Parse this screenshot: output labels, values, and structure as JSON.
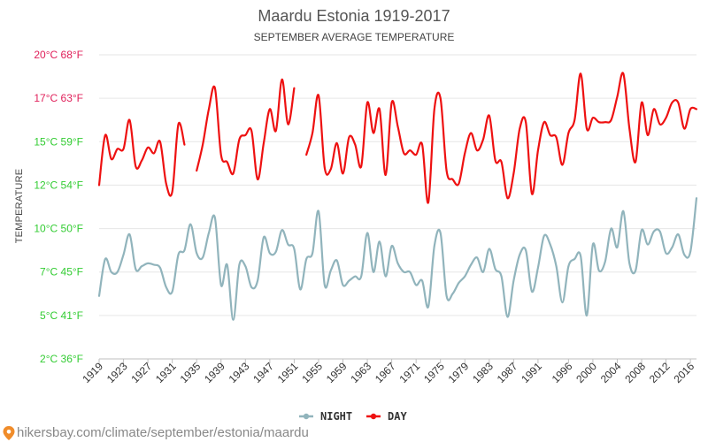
{
  "chart_data": {
    "type": "line",
    "title": "Maardu Estonia 1919-2017",
    "subtitle": "SEPTEMBER AVERAGE TEMPERATURE",
    "ylabel": "TEMPERATURE",
    "xlabel": "",
    "ylim": [
      2,
      20
    ],
    "xlim": [
      1919,
      2017
    ],
    "y_ticks": [
      {
        "value": 2,
        "label": "2°C 36°F",
        "color": "#33cc33"
      },
      {
        "value": 5,
        "label": "5°C 41°F",
        "color": "#33cc33"
      },
      {
        "value": 7,
        "label": "7°C 45°F",
        "color": "#33cc33"
      },
      {
        "value": 10,
        "label": "10°C 50°F",
        "color": "#33cc33"
      },
      {
        "value": 12,
        "label": "12°C 54°F",
        "color": "#33cc33"
      },
      {
        "value": 15,
        "label": "15°C 59°F",
        "color": "#33cc33"
      },
      {
        "value": 17,
        "label": "17°C 63°F",
        "color": "#e0205a"
      },
      {
        "value": 20,
        "label": "20°C 68°F",
        "color": "#e0205a"
      }
    ],
    "x_ticks": [
      {
        "value": 1919,
        "label": "1919"
      },
      {
        "value": 1923,
        "label": "1923"
      },
      {
        "value": 1927,
        "label": "1927"
      },
      {
        "value": 1931,
        "label": "1931"
      },
      {
        "value": 1935,
        "label": "1935"
      },
      {
        "value": 1939,
        "label": "1939"
      },
      {
        "value": 1943,
        "label": "1943"
      },
      {
        "value": 1947,
        "label": "1947"
      },
      {
        "value": 1951,
        "label": "1951"
      },
      {
        "value": 1955,
        "label": "1955"
      },
      {
        "value": 1959,
        "label": "1959"
      },
      {
        "value": 1963,
        "label": "1963"
      },
      {
        "value": 1967,
        "label": "1967"
      },
      {
        "value": 1971,
        "label": "1971"
      },
      {
        "value": 1975,
        "label": "1975"
      },
      {
        "value": 1979,
        "label": "1979"
      },
      {
        "value": 1983,
        "label": "1983"
      },
      {
        "value": 1987,
        "label": "1987"
      },
      {
        "value": 1991,
        "label": "1991"
      },
      {
        "value": 1996,
        "label": "1996"
      },
      {
        "value": 2000,
        "label": "2000"
      },
      {
        "value": 2004,
        "label": "2004"
      },
      {
        "value": 2008,
        "label": "2008"
      },
      {
        "value": 2012,
        "label": "2012"
      },
      {
        "value": 2016,
        "label": "2016"
      }
    ],
    "grid": true,
    "legend_position": "bottom-center",
    "series": [
      {
        "name": "NIGHT",
        "color": "#91b4bc",
        "x": [
          1919,
          1920,
          1921,
          1922,
          1923,
          1924,
          1925,
          1926,
          1927,
          1928,
          1929,
          1930,
          1931,
          1932,
          1933,
          1934,
          1935,
          1936,
          1937,
          1938,
          1939,
          1940,
          1941,
          1942,
          1943,
          1944,
          1945,
          1946,
          1947,
          1948,
          1949,
          1950,
          1951,
          1952,
          1953,
          1954,
          1955,
          1956,
          1957,
          1958,
          1959,
          1960,
          1961,
          1962,
          1963,
          1964,
          1965,
          1966,
          1967,
          1968,
          1969,
          1970,
          1971,
          1972,
          1973,
          1974,
          1975,
          1976,
          1977,
          1978,
          1979,
          1980,
          1981,
          1982,
          1983,
          1984,
          1985,
          1986,
          1987,
          1988,
          1989,
          1990,
          1991,
          1992,
          1993,
          1994,
          1995,
          1996,
          1997,
          1998,
          1999,
          2000,
          2001,
          2002,
          2003,
          2004,
          2005,
          2006,
          2007,
          2008,
          2009,
          2010,
          2011,
          2012,
          2013,
          2014,
          2015,
          2016,
          2017
        ],
        "values": [
          5.9,
          7.9,
          7.0,
          7.0,
          8.2,
          9.6,
          7.2,
          7.4,
          7.6,
          7.5,
          7.3,
          6.3,
          6.1,
          8.2,
          8.5,
          10.2,
          8.3,
          8.0,
          9.7,
          10.5,
          6.4,
          7.5,
          4.7,
          7.5,
          7.4,
          6.3,
          6.6,
          9.4,
          8.3,
          8.4,
          9.9,
          8.9,
          8.6,
          6.2,
          7.9,
          8.3,
          10.8,
          6.4,
          7.1,
          7.8,
          6.4,
          6.6,
          6.8,
          6.8,
          9.7,
          7.0,
          9.1,
          6.8,
          8.8,
          7.6,
          7.0,
          7.0,
          6.4,
          6.6,
          5.4,
          8.8,
          9.7,
          5.9,
          6.0,
          6.5,
          6.8,
          7.5,
          8.0,
          7.0,
          8.6,
          7.2,
          6.8,
          4.9,
          6.6,
          8.2,
          8.5,
          6.1,
          7.3,
          9.5,
          8.9,
          7.4,
          5.6,
          7.4,
          7.9,
          8.1,
          5.0,
          8.9,
          7.1,
          7.7,
          10.0,
          8.7,
          10.8,
          7.6,
          7.1,
          9.9,
          8.9,
          9.8,
          9.8,
          8.3,
          8.7,
          9.6,
          8.2,
          8.4,
          11.4
        ]
      },
      {
        "name": "DAY",
        "color": "#ee1111",
        "x": [
          1919,
          1920,
          1921,
          1922,
          1923,
          1924,
          1925,
          1926,
          1927,
          1928,
          1929,
          1930,
          1931,
          1932,
          1933,
          null,
          1935,
          1936,
          1937,
          1938,
          1939,
          1940,
          1941,
          1942,
          1943,
          1944,
          1945,
          1946,
          1947,
          1948,
          1949,
          1950,
          1951,
          null,
          1953,
          1954,
          1955,
          1956,
          1957,
          1958,
          1959,
          1960,
          1961,
          1962,
          1963,
          1964,
          1965,
          1966,
          1967,
          1968,
          1969,
          1970,
          1971,
          1972,
          1973,
          1974,
          1975,
          1976,
          1977,
          1978,
          1979,
          1980,
          1981,
          1982,
          1983,
          1984,
          1985,
          1986,
          1987,
          1988,
          1989,
          1990,
          1991,
          1992,
          1993,
          1994,
          1995,
          1996,
          1997,
          1998,
          1999,
          2000,
          2001,
          2002,
          2003,
          2004,
          2005,
          2006,
          2007,
          2008,
          2009,
          2010,
          2011,
          2012,
          2013,
          2014,
          2015,
          2016,
          2017
        ],
        "values": [
          12.0,
          15.3,
          13.8,
          14.5,
          14.5,
          16.0,
          13.3,
          13.7,
          14.6,
          14.2,
          15.0,
          12.1,
          11.7,
          15.8,
          14.8,
          null,
          13.0,
          14.8,
          16.5,
          17.7,
          14.1,
          13.6,
          12.8,
          15.1,
          15.3,
          15.5,
          12.4,
          14.9,
          16.5,
          15.5,
          18.3,
          15.8,
          17.7,
          null,
          14.1,
          15.4,
          17.2,
          13.2,
          13.1,
          14.9,
          12.8,
          15.2,
          14.8,
          13.3,
          16.8,
          15.4,
          16.5,
          12.7,
          16.8,
          15.7,
          14.2,
          14.4,
          14.1,
          14.8,
          11.2,
          16.5,
          17.0,
          13.0,
          12.4,
          12.1,
          14.2,
          15.4,
          14.4,
          15.1,
          16.2,
          13.7,
          13.6,
          11.4,
          12.8,
          15.6,
          15.9,
          11.6,
          14.4,
          15.9,
          15.3,
          15.2,
          13.4,
          15.4,
          16.0,
          18.7,
          15.6,
          16.1,
          15.9,
          15.9,
          16.0,
          17.1,
          18.7,
          15.6,
          13.6,
          16.8,
          15.3,
          16.5,
          15.8,
          16.1,
          16.8,
          16.8,
          15.6,
          16.5,
          16.5
        ]
      }
    ]
  },
  "legend": {
    "night_label": "NIGHT",
    "day_label": "DAY"
  },
  "footer": {
    "source_url": "hikersbay.com/climate/september/estonia/maardu"
  },
  "colors": {
    "night": "#91b4bc",
    "day": "#ee1111",
    "pin_icon": "#f08c2a"
  },
  "icons": {
    "location_pin": "map-pin-icon"
  }
}
